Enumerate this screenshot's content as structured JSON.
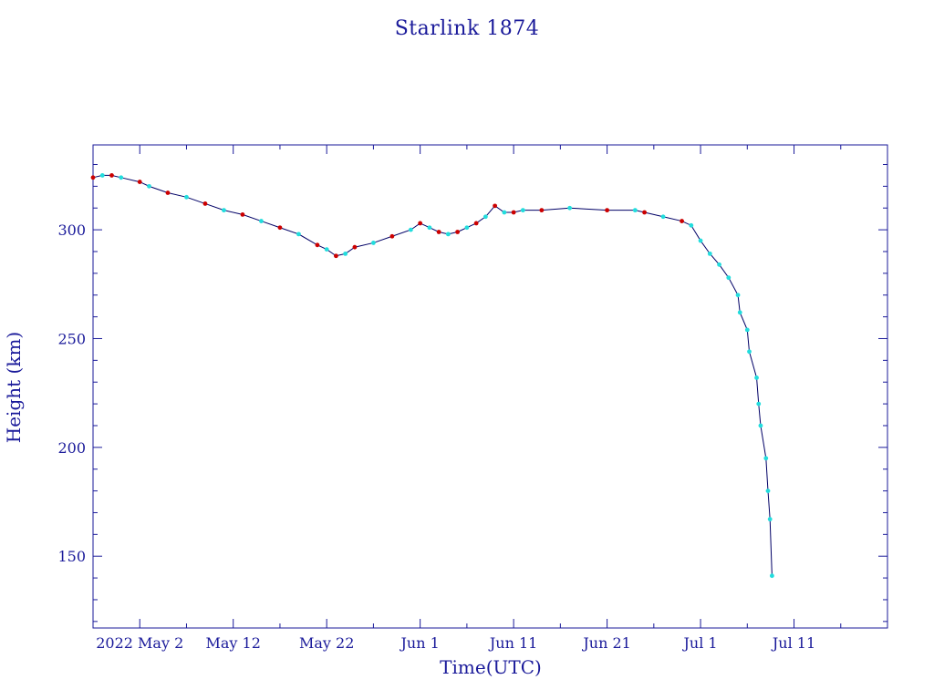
{
  "chart_data": {
    "type": "line",
    "title": "Starlink 1874",
    "xlabel": "Time(UTC)",
    "ylabel": "Height (km)",
    "x_tick_labels": [
      "2022 May  2",
      "May 12",
      "May 22",
      "Jun  1",
      "Jun 11",
      "Jun 21",
      "Jul  1",
      "Jul 11"
    ],
    "y_tick_labels": [
      "150",
      "200",
      "250",
      "300"
    ],
    "y_ticks": [
      150,
      200,
      250,
      300
    ],
    "xlim": [
      "2022-04-27",
      "2022-07-21"
    ],
    "ylim": [
      117,
      339
    ],
    "colors": {
      "axes": "#1a1a9a",
      "line": "#000066",
      "series_red": "#cc0000",
      "series_cyan": "#22dddd"
    },
    "series": [
      {
        "values": [
          [
            "2022-04-27",
            324
          ],
          [
            "2022-04-28",
            325
          ],
          [
            "2022-04-29",
            325
          ],
          [
            "2022-04-30",
            324
          ],
          [
            "2022-05-02",
            322
          ],
          [
            "2022-05-03",
            320
          ],
          [
            "2022-05-05",
            317
          ],
          [
            "2022-05-07",
            315
          ],
          [
            "2022-05-09",
            312
          ],
          [
            "2022-05-11",
            309
          ],
          [
            "2022-05-13",
            307
          ],
          [
            "2022-05-15",
            304
          ],
          [
            "2022-05-17",
            301
          ],
          [
            "2022-05-19",
            298
          ],
          [
            "2022-05-21",
            293
          ],
          [
            "2022-05-22",
            291
          ],
          [
            "2022-05-23",
            288
          ],
          [
            "2022-05-24",
            289
          ],
          [
            "2022-05-25",
            292
          ],
          [
            "2022-05-27",
            294
          ],
          [
            "2022-05-29",
            297
          ],
          [
            "2022-05-31",
            300
          ],
          [
            "2022-06-01",
            303
          ],
          [
            "2022-06-02",
            301
          ],
          [
            "2022-06-03",
            299
          ],
          [
            "2022-06-04",
            298
          ],
          [
            "2022-06-05",
            299
          ],
          [
            "2022-06-06",
            301
          ],
          [
            "2022-06-07",
            303
          ],
          [
            "2022-06-08",
            306
          ],
          [
            "2022-06-09",
            311
          ],
          [
            "2022-06-10",
            308
          ],
          [
            "2022-06-11",
            308
          ],
          [
            "2022-06-12",
            309
          ],
          [
            "2022-06-14",
            309
          ],
          [
            "2022-06-17",
            310
          ],
          [
            "2022-06-21",
            309
          ],
          [
            "2022-06-24",
            309
          ],
          [
            "2022-06-25",
            308
          ],
          [
            "2022-06-27",
            306
          ],
          [
            "2022-06-29",
            304
          ],
          [
            "2022-06-30",
            302
          ]
        ]
      },
      {
        "values": [
          [
            "2022-07-01",
            295
          ],
          [
            "2022-07-02",
            289
          ],
          [
            "2022-07-03",
            284
          ],
          [
            "2022-07-04",
            278
          ],
          [
            "2022-07-05",
            270
          ],
          [
            "2022-07-05",
            262
          ],
          [
            "2022-07-06",
            254
          ],
          [
            "2022-07-06",
            244
          ],
          [
            "2022-07-07",
            232
          ],
          [
            "2022-07-07",
            220
          ],
          [
            "2022-07-07",
            210
          ],
          [
            "2022-07-08",
            195
          ],
          [
            "2022-07-08",
            180
          ],
          [
            "2022-07-08",
            167
          ],
          [
            "2022-07-08",
            141
          ]
        ]
      }
    ]
  }
}
